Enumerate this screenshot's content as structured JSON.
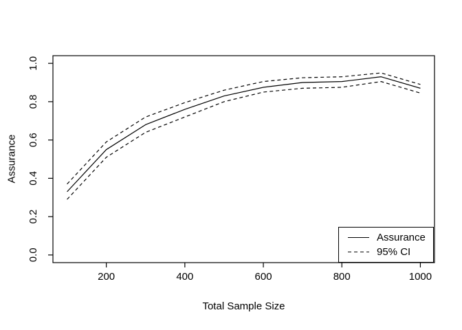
{
  "figure": {
    "background": "#ffffff",
    "line_color": "#000000"
  },
  "chart_data": {
    "type": "line",
    "title": "",
    "xlabel": "Total Sample Size",
    "ylabel": "Assurance",
    "x": [
      100,
      200,
      300,
      400,
      500,
      600,
      700,
      800,
      900,
      1000
    ],
    "series": [
      {
        "name": "Assurance",
        "style": "solid",
        "values": [
          0.33,
          0.55,
          0.68,
          0.76,
          0.83,
          0.875,
          0.9,
          0.905,
          0.93,
          0.87
        ]
      },
      {
        "name": "95% CI upper",
        "style": "dashed",
        "values": [
          0.37,
          0.59,
          0.72,
          0.795,
          0.86,
          0.905,
          0.925,
          0.93,
          0.95,
          0.89
        ]
      },
      {
        "name": "95% CI lower",
        "style": "dashed",
        "values": [
          0.29,
          0.51,
          0.64,
          0.72,
          0.8,
          0.85,
          0.87,
          0.875,
          0.905,
          0.845
        ]
      }
    ],
    "xlim": [
      100,
      1000
    ],
    "ylim": [
      0,
      1
    ],
    "x_ticks": [
      "200",
      "400",
      "600",
      "800",
      "1000"
    ],
    "x_tick_values": [
      200,
      400,
      600,
      800,
      1000
    ],
    "y_ticks": [
      "0.0",
      "0.2",
      "0.4",
      "0.6",
      "0.8",
      "1.0"
    ],
    "y_tick_values": [
      0,
      0.2,
      0.4,
      0.6,
      0.8,
      1.0
    ],
    "grid": false,
    "legend": {
      "position": "bottomright",
      "entries": [
        {
          "label": "Assurance",
          "line": "solid"
        },
        {
          "label": "95% CI",
          "line": "dashed"
        }
      ]
    }
  }
}
